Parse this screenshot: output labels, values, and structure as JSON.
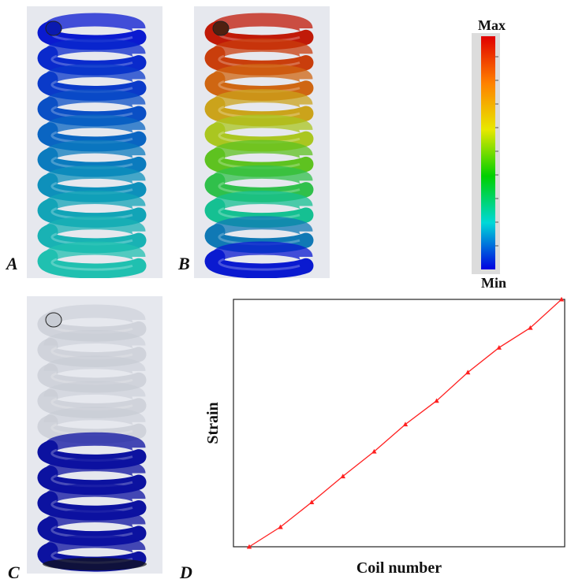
{
  "panels": {
    "a": {
      "letter": "A"
    },
    "b": {
      "letter": "B"
    },
    "c": {
      "letter": "C"
    },
    "d": {
      "letter": "D"
    }
  },
  "colorbar": {
    "max_label": "Max",
    "min_label": "Min",
    "colors": [
      "#e00000",
      "#ff8000",
      "#e8e800",
      "#00d000",
      "#00d8d8",
      "#0000e0"
    ]
  },
  "chart_data": {
    "type": "line",
    "title": "",
    "xlabel": "Coil number",
    "ylabel": "Strain",
    "line_color": "#ff2020",
    "marker": "triangle",
    "x": [
      0,
      1,
      2,
      3,
      4,
      5,
      6,
      7,
      8,
      9,
      10
    ],
    "y": [
      0.0,
      0.08,
      0.18,
      0.285,
      0.385,
      0.495,
      0.59,
      0.705,
      0.805,
      0.885,
      1.0
    ],
    "xlim": [
      0,
      10
    ],
    "ylim": [
      0,
      1
    ],
    "grid": false
  }
}
